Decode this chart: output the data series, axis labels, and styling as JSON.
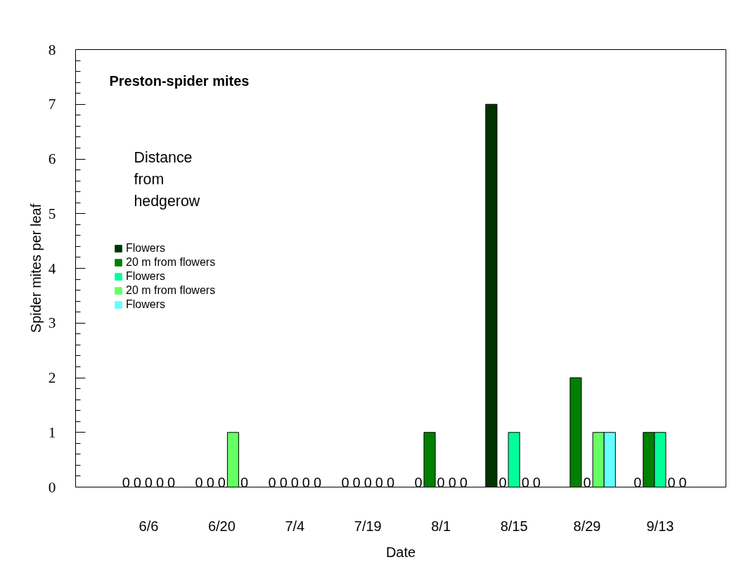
{
  "chart_data": {
    "type": "bar",
    "title": "Preston-spider mites",
    "xlabel": "Date",
    "ylabel": "Spider mites per leaf",
    "legend_title": "Distance from hedgerow",
    "categories": [
      "6/6",
      "6/20",
      "7/4",
      "7/19",
      "8/1",
      "8/15",
      "8/29",
      "9/13"
    ],
    "series": [
      {
        "name": "Flowers",
        "color": "#003300",
        "values": [
          0,
          0,
          0,
          0,
          0,
          7,
          null,
          0
        ],
        "value_labels": [
          "0",
          "0",
          "0",
          "0",
          "0",
          null,
          null,
          "0"
        ]
      },
      {
        "name": "20 m from flowers",
        "color": "#008000",
        "values": [
          0,
          0,
          0,
          0,
          1,
          0,
          2,
          1
        ],
        "value_labels": [
          "0",
          "0",
          "0",
          "0",
          null,
          "0",
          null,
          null
        ]
      },
      {
        "name": "Flowers",
        "color": "#00ff99",
        "values": [
          0,
          0,
          0,
          0,
          0,
          1,
          0,
          1
        ],
        "value_labels": [
          "0",
          "0",
          "0",
          "0",
          "0",
          null,
          "0",
          null
        ]
      },
      {
        "name": "20 m from flowers",
        "color": "#66ff66",
        "values": [
          0,
          1,
          0,
          0,
          0,
          0,
          1,
          0
        ],
        "value_labels": [
          "0",
          null,
          "0",
          "0",
          "0",
          "0",
          null,
          "0"
        ]
      },
      {
        "name": "Flowers",
        "color": "#66ffff",
        "values": [
          0,
          0,
          0,
          0,
          0,
          0,
          1,
          0
        ],
        "value_labels": [
          "0",
          "0",
          "0",
          "0",
          "0",
          "0",
          null,
          "0"
        ]
      }
    ],
    "ylim": [
      0,
      8
    ],
    "yticks": [
      0,
      1,
      2,
      3,
      4,
      5,
      6,
      7,
      8
    ],
    "grid": false,
    "legend": "left"
  }
}
